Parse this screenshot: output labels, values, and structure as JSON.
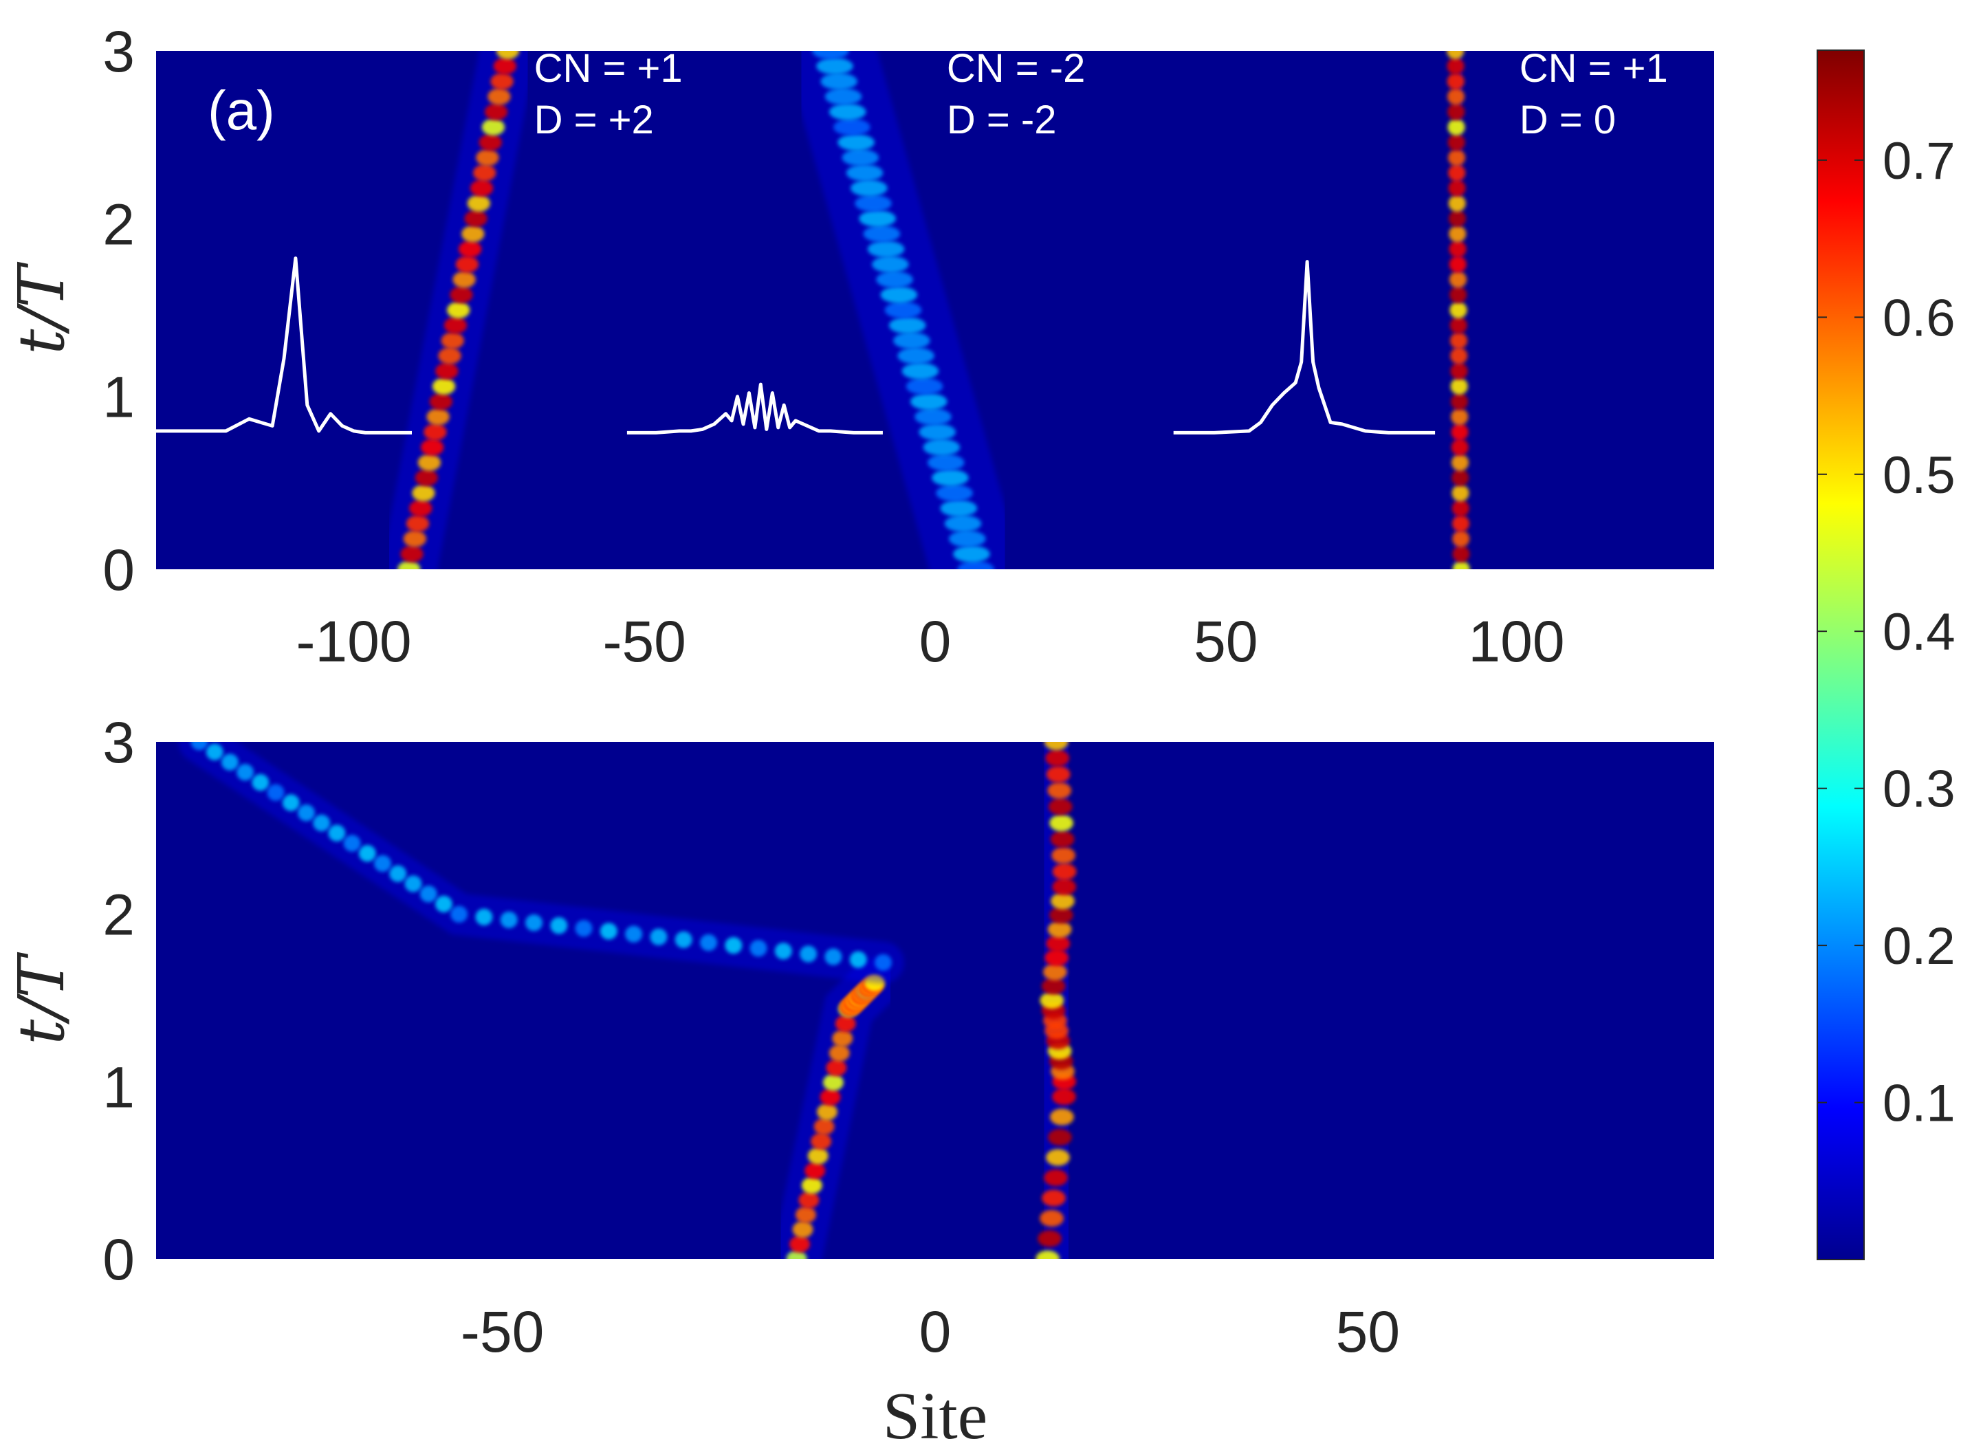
{
  "chart_data": [
    {
      "type": "heatmap",
      "panel_label": "(a)",
      "xlim": [
        -134,
        134
      ],
      "ylim": [
        0,
        3
      ],
      "xticks": [
        -100,
        -50,
        0,
        50,
        100
      ],
      "yticks": [
        0,
        1,
        2,
        3
      ],
      "ylabel": "t/T",
      "xlabel": "",
      "tracks": [
        {
          "name": "left",
          "start_x": -90.5,
          "end_x": -73.5,
          "intensity": 0.75,
          "width": 2.0
        },
        {
          "name": "middle",
          "start_x": 7,
          "end_x": -18,
          "intensity": 0.18,
          "width": 3.2
        },
        {
          "name": "right",
          "start_x": 90.5,
          "end_x": 89.5,
          "intensity": 0.77,
          "width": 1.5
        }
      ],
      "annotations": [
        {
          "lines": [
            "CN = +1",
            "D = +2"
          ],
          "x": -69,
          "y": 2.9
        },
        {
          "lines": [
            "CN = -2",
            "D = -2"
          ],
          "x": 2,
          "y": 2.9
        },
        {
          "lines": [
            "CN = +1",
            "D = 0"
          ],
          "x": 100.5,
          "y": 2.9
        }
      ],
      "profiles": [
        {
          "x": [
            -134,
            -130,
            -126,
            -122,
            -118,
            -116,
            -114,
            -112,
            -110,
            -108,
            -106,
            -104,
            -102,
            -100,
            -98,
            -96,
            -94,
            -90
          ],
          "y": [
            0.8,
            0.8,
            0.8,
            0.8,
            0.87,
            0.85,
            0.83,
            1.22,
            1.8,
            0.95,
            0.8,
            0.9,
            0.83,
            0.8,
            0.79,
            0.79,
            0.79,
            0.79
          ]
        },
        {
          "x": [
            -53,
            -48,
            -44,
            -42,
            -40,
            -38,
            -36,
            -35,
            -34,
            -33,
            -32,
            -31,
            -30,
            -29,
            -28,
            -27,
            -26,
            -25,
            -24,
            -22,
            -20,
            -18,
            -14,
            -9
          ],
          "y": [
            0.79,
            0.79,
            0.8,
            0.8,
            0.81,
            0.84,
            0.9,
            0.86,
            1.0,
            0.84,
            1.02,
            0.82,
            1.07,
            0.81,
            1.02,
            0.82,
            0.95,
            0.82,
            0.86,
            0.83,
            0.8,
            0.8,
            0.79,
            0.79
          ]
        },
        {
          "x": [
            41,
            48,
            54,
            56,
            58,
            60,
            62,
            63,
            64,
            65,
            66,
            68,
            70,
            72,
            74,
            78,
            86
          ],
          "y": [
            0.79,
            0.79,
            0.8,
            0.85,
            0.95,
            1.02,
            1.08,
            1.2,
            1.78,
            1.2,
            1.05,
            0.85,
            0.84,
            0.82,
            0.8,
            0.79,
            0.79
          ]
        }
      ]
    },
    {
      "type": "heatmap",
      "xlim": [
        -90,
        90
      ],
      "ylim": [
        0,
        3
      ],
      "xticks": [
        -50,
        0,
        50
      ],
      "yticks": [
        0,
        1,
        2,
        3
      ],
      "ylabel": "t/T",
      "xlabel": "Site",
      "tracks": [
        {
          "name": "left-soliton",
          "points": [
            [
              -16,
              0
            ],
            [
              -10,
              1.45
            ],
            [
              -7,
              1.6
            ]
          ],
          "intensity": 0.7,
          "width": 1.2
        },
        {
          "name": "radiation",
          "points": [
            [
              -6,
              1.72
            ],
            [
              -55,
              2.0
            ],
            [
              -85,
              3.0
            ]
          ],
          "intensity": 0.2,
          "width": 1.0
        },
        {
          "name": "central",
          "points": [
            [
              13,
              0
            ],
            [
              15,
              1.0
            ],
            [
              13.5,
              1.5
            ],
            [
              15,
              2.2
            ],
            [
              14,
              3.0
            ]
          ],
          "intensity": 0.77,
          "width": 1.4
        }
      ]
    }
  ],
  "colorbar": {
    "min": 0,
    "max": 0.77,
    "ticks": [
      0.1,
      0.2,
      0.3,
      0.4,
      0.5,
      0.6,
      0.7
    ],
    "colormap": "jet",
    "background_color": "#00008f"
  }
}
